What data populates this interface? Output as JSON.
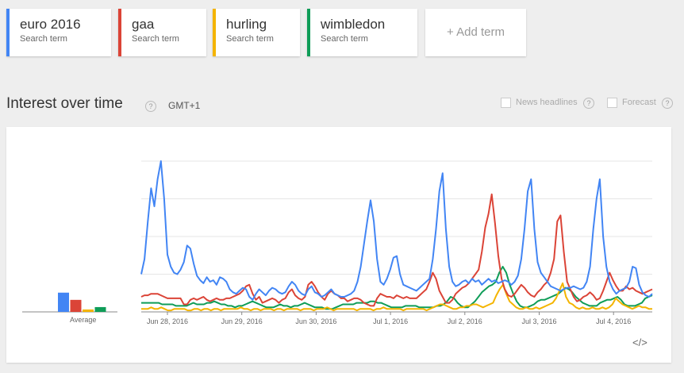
{
  "terms": [
    {
      "name": "euro 2016",
      "type": "Search term",
      "color": "#4285f4"
    },
    {
      "name": "gaa",
      "type": "Search term",
      "color": "#db4437"
    },
    {
      "name": "hurling",
      "type": "Search term",
      "color": "#f4b400"
    },
    {
      "name": "wimbledon",
      "type": "Search term",
      "color": "#0f9d58"
    }
  ],
  "add_term": "+ Add term",
  "section": {
    "title": "Interest over time",
    "help": "?",
    "timezone": "GMT+1"
  },
  "options": {
    "news_headlines": "News headlines",
    "forecast": "Forecast"
  },
  "average": {
    "label": "Average"
  },
  "embed_icon": "</>",
  "chart_data": {
    "type": "line",
    "ylim": [
      0,
      100
    ],
    "grid": true,
    "x_tick_labels": [
      "Jun 28, 2016",
      "Jun 29, 2016",
      "Jun 30, 2016",
      "Jul 1, 2016",
      "Jul 2, 2016",
      "Jul 3, 2016",
      "Jul 4, 2016"
    ],
    "averages": [
      {
        "series": "euro 2016",
        "value": 24
      },
      {
        "series": "gaa",
        "value": 15
      },
      {
        "series": "hurling",
        "value": 3
      },
      {
        "series": "wimbledon",
        "value": 6
      }
    ],
    "series": [
      {
        "name": "euro 2016",
        "values": [
          25,
          35,
          60,
          82,
          70,
          88,
          100,
          75,
          38,
          30,
          26,
          25,
          28,
          33,
          44,
          42,
          32,
          24,
          21,
          19,
          23,
          20,
          21,
          18,
          23,
          22,
          20,
          15,
          13,
          12,
          14,
          16,
          15,
          10,
          8,
          12,
          15,
          13,
          11,
          14,
          16,
          15,
          13,
          12,
          13,
          17,
          20,
          18,
          14,
          12,
          11,
          15,
          17,
          13,
          12,
          10,
          11,
          13,
          15,
          12,
          11,
          10,
          10,
          11,
          12,
          14,
          20,
          30,
          45,
          60,
          74,
          60,
          35,
          20,
          18,
          22,
          28,
          36,
          37,
          25,
          18,
          17,
          16,
          15,
          14,
          16,
          18,
          20,
          22,
          35,
          55,
          80,
          92,
          55,
          30,
          20,
          17,
          18,
          20,
          21,
          19,
          22,
          20,
          21,
          18,
          20,
          22,
          20,
          21,
          19,
          20,
          21,
          20,
          18,
          20,
          24,
          35,
          55,
          80,
          88,
          55,
          33,
          26,
          23,
          20,
          17,
          16,
          15,
          14,
          15,
          16,
          16,
          17,
          16,
          15,
          16,
          20,
          30,
          55,
          75,
          88,
          50,
          30,
          20,
          15,
          12,
          14,
          15,
          16,
          20,
          30,
          29,
          18,
          13,
          11,
          10,
          12
        ]
      },
      {
        "name": "gaa",
        "values": [
          10,
          11,
          11,
          12,
          12,
          12,
          11,
          10,
          9,
          9,
          9,
          9,
          9,
          5,
          5,
          8,
          9,
          8,
          9,
          10,
          8,
          7,
          8,
          9,
          8,
          8,
          9,
          9,
          10,
          11,
          12,
          14,
          17,
          18,
          12,
          8,
          10,
          6,
          7,
          8,
          9,
          8,
          6,
          8,
          9,
          13,
          15,
          11,
          9,
          8,
          10,
          18,
          20,
          17,
          13,
          10,
          8,
          12,
          14,
          12,
          11,
          9,
          9,
          7,
          8,
          9,
          9,
          8,
          6,
          5,
          4,
          4,
          9,
          12,
          11,
          10,
          10,
          9,
          11,
          10,
          9,
          10,
          9,
          9,
          9,
          11,
          13,
          15,
          20,
          26,
          22,
          14,
          10,
          6,
          6,
          8,
          12,
          14,
          16,
          17,
          19,
          22,
          25,
          28,
          40,
          56,
          65,
          78,
          59,
          37,
          22,
          15,
          11,
          10,
          12,
          15,
          18,
          16,
          13,
          11,
          10,
          13,
          15,
          18,
          20,
          26,
          35,
          60,
          64,
          40,
          20,
          15,
          10,
          7,
          8,
          10,
          11,
          13,
          11,
          8,
          9,
          14,
          20,
          26,
          21,
          17,
          14,
          14,
          17,
          15,
          16,
          14,
          13,
          12,
          13,
          14,
          15
        ]
      },
      {
        "name": "hurling",
        "values": [
          2,
          2,
          2,
          3,
          2,
          2,
          3,
          2,
          1,
          1,
          2,
          2,
          2,
          2,
          1,
          1,
          2,
          2,
          1,
          2,
          2,
          1,
          2,
          2,
          1,
          2,
          2,
          2,
          2,
          2,
          3,
          2,
          2,
          1,
          2,
          2,
          1,
          2,
          2,
          2,
          1,
          2,
          2,
          1,
          2,
          2,
          2,
          2,
          1,
          2,
          2,
          2,
          1,
          2,
          2,
          2,
          3,
          2,
          1,
          2,
          2,
          2,
          2,
          2,
          2,
          1,
          2,
          2,
          2,
          2,
          1,
          2,
          2,
          3,
          2,
          2,
          2,
          2,
          2,
          1,
          2,
          2,
          2,
          2,
          2,
          2,
          1,
          2,
          3,
          4,
          5,
          5,
          4,
          3,
          2,
          2,
          3,
          3,
          4,
          4,
          5,
          5,
          4,
          3,
          4,
          5,
          6,
          11,
          15,
          18,
          12,
          7,
          5,
          3,
          2,
          2,
          3,
          2,
          2,
          3,
          2,
          3,
          4,
          5,
          6,
          9,
          14,
          19,
          10,
          6,
          5,
          3,
          2,
          3,
          2,
          2,
          3,
          2,
          2,
          3,
          2,
          3,
          5,
          9,
          7,
          5,
          4,
          3,
          2,
          3,
          4,
          3,
          3,
          2,
          2
        ]
      },
      {
        "name": "wimbledon",
        "values": [
          6,
          6,
          6,
          6,
          6,
          6,
          5,
          5,
          5,
          5,
          4,
          4,
          4,
          4,
          5,
          6,
          5,
          5,
          5,
          6,
          6,
          7,
          6,
          5,
          5,
          4,
          4,
          3,
          4,
          4,
          5,
          6,
          7,
          6,
          5,
          4,
          3,
          3,
          3,
          4,
          5,
          4,
          4,
          3,
          4,
          4,
          5,
          6,
          5,
          4,
          3,
          3,
          3,
          2,
          2,
          2,
          3,
          4,
          5,
          5,
          5,
          5,
          6,
          6,
          6,
          6,
          7,
          7,
          6,
          6,
          5,
          4,
          3,
          3,
          3,
          3,
          4,
          4,
          4,
          4,
          3,
          3,
          3,
          3,
          3,
          4,
          4,
          5,
          7,
          10,
          9,
          6,
          4,
          3,
          3,
          5,
          7,
          10,
          13,
          15,
          17,
          18,
          20,
          26,
          30,
          26,
          18,
          12,
          7,
          4,
          3,
          3,
          4,
          5,
          7,
          8,
          8,
          9,
          10,
          11,
          12,
          14,
          16,
          15,
          13,
          10,
          8,
          6,
          5,
          4,
          4,
          4,
          6,
          7,
          8,
          8,
          9,
          10,
          8,
          5,
          4,
          4,
          4,
          5,
          6,
          9,
          10,
          11
        ]
      }
    ]
  }
}
